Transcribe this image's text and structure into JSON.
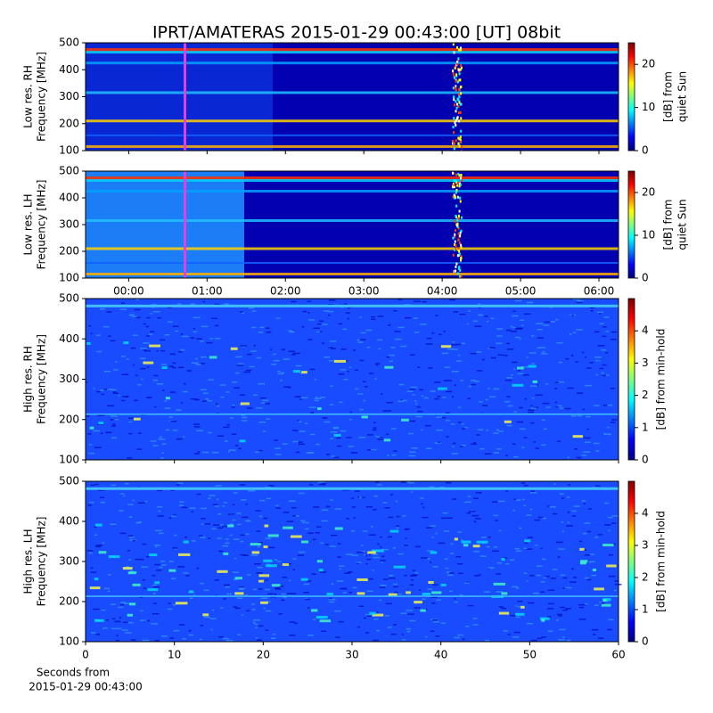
{
  "chart_data": [
    {
      "type": "heatmap",
      "title": "IPRT/AMATERAS 2015-01-29 00:43:00 [UT]   08bit",
      "ylabel": [
        "Low res. RH",
        "Frequency [MHz]"
      ],
      "colorbar_label": [
        "[dB] from",
        "quiet Sun"
      ],
      "ylim": [
        100,
        500
      ],
      "yticks": [
        100,
        200,
        300,
        400,
        500
      ],
      "xlim": [
        -0.55,
        6.25
      ],
      "xticks": [
        {
          "value": 0,
          "label": "00:00"
        },
        {
          "value": 1,
          "label": "01:00"
        },
        {
          "value": 2,
          "label": "02:00"
        },
        {
          "value": 3,
          "label": "03:00"
        },
        {
          "value": 4,
          "label": "04:00"
        },
        {
          "value": 5,
          "label": "05:00"
        },
        {
          "value": 6,
          "label": "06:00"
        }
      ],
      "clim": [
        0,
        25
      ],
      "cticks": [
        0,
        10,
        20
      ],
      "colormap": "jet"
    },
    {
      "type": "heatmap",
      "ylabel": [
        "Low res. LH",
        "Frequency [MHz]"
      ],
      "colorbar_label": [
        "[dB] from",
        "quiet Sun"
      ],
      "ylim": [
        100,
        500
      ],
      "yticks": [
        100,
        200,
        300,
        400,
        500
      ],
      "xlim": [
        -0.55,
        6.25
      ],
      "xticks": [
        {
          "value": 0,
          "label": "00:00"
        },
        {
          "value": 1,
          "label": "01:00"
        },
        {
          "value": 2,
          "label": "02:00"
        },
        {
          "value": 3,
          "label": "03:00"
        },
        {
          "value": 4,
          "label": "04:00"
        },
        {
          "value": 5,
          "label": "05:00"
        },
        {
          "value": 6,
          "label": "06:00"
        }
      ],
      "clim": [
        0,
        25
      ],
      "cticks": [
        0,
        10,
        20
      ],
      "colormap": "jet"
    },
    {
      "type": "heatmap",
      "ylabel": [
        "High res. RH",
        "Frequency [MHz]"
      ],
      "colorbar_label": [
        "[dB] from min-hold"
      ],
      "ylim": [
        100,
        500
      ],
      "yticks": [
        100,
        200,
        300,
        400,
        500
      ],
      "xlim": [
        0,
        60
      ],
      "xticks": [
        0,
        10,
        20,
        30,
        40,
        50,
        60
      ],
      "clim": [
        0,
        5
      ],
      "cticks": [
        0,
        1,
        2,
        3,
        4
      ],
      "colormap": "jet"
    },
    {
      "type": "heatmap",
      "ylabel": [
        "High res. LH",
        "Frequency [MHz]"
      ],
      "colorbar_label": [
        "[dB] from min-hold"
      ],
      "ylim": [
        100,
        500
      ],
      "yticks": [
        100,
        200,
        300,
        400,
        500
      ],
      "xlim": [
        0,
        60
      ],
      "xticks": [
        0,
        10,
        20,
        30,
        40,
        50,
        60
      ],
      "xlabel": [
        "Seconds from",
        "2015-01-29 00:43:00"
      ],
      "clim": [
        0,
        5
      ],
      "cticks": [
        0,
        1,
        2,
        3,
        4
      ],
      "colormap": "jet"
    }
  ]
}
